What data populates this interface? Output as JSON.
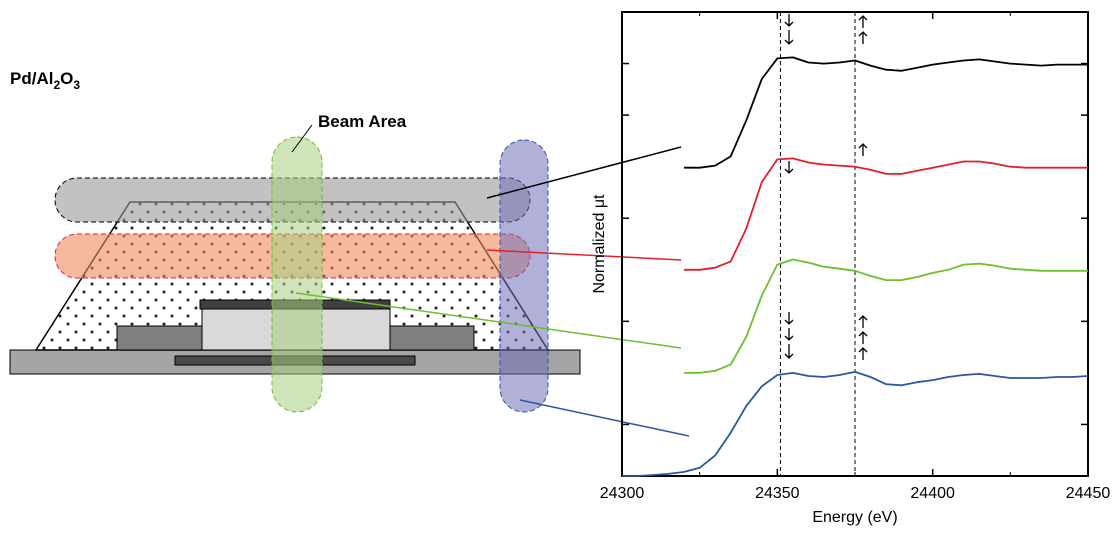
{
  "diagram": {
    "sample_label_parts": [
      "Pd/Al",
      "2",
      "O",
      "3"
    ],
    "beam_label": "Beam Area"
  },
  "chart_data": {
    "type": "line",
    "x_label": "Energy (eV)",
    "y_label": "Normalized μt",
    "x": [
      24300,
      24305,
      24310,
      24315,
      24320,
      24325,
      24330,
      24335,
      24340,
      24345,
      24350,
      24355,
      24360,
      24365,
      24370,
      24375,
      24380,
      24385,
      24390,
      24395,
      24400,
      24405,
      24410,
      24415,
      24420,
      24425,
      24430,
      24435,
      24440,
      24445,
      24450
    ],
    "series": [
      {
        "color": "#000000",
        "values": [
          null,
          null,
          null,
          null,
          2.99,
          2.99,
          3.01,
          3.1,
          3.45,
          3.85,
          4.05,
          4.06,
          4.01,
          4.0,
          4.01,
          4.03,
          3.98,
          3.94,
          3.93,
          3.96,
          3.99,
          4.01,
          4.03,
          4.04,
          4.02,
          4.0,
          3.99,
          3.98,
          3.99,
          3.99,
          3.99
        ]
      },
      {
        "color": "#e0202a",
        "values": [
          null,
          null,
          null,
          null,
          2.0,
          2.0,
          2.02,
          2.08,
          2.4,
          2.85,
          3.07,
          3.08,
          3.04,
          3.02,
          3.01,
          3.0,
          2.97,
          2.93,
          2.93,
          2.96,
          2.99,
          3.02,
          3.05,
          3.05,
          3.03,
          3.0,
          2.99,
          2.99,
          2.99,
          2.99,
          2.99
        ]
      },
      {
        "color": "#6cbf2e",
        "values": [
          null,
          null,
          null,
          null,
          1.0,
          1.0,
          1.02,
          1.08,
          1.35,
          1.75,
          2.05,
          2.1,
          2.07,
          2.03,
          2.01,
          1.99,
          1.94,
          1.9,
          1.9,
          1.93,
          1.97,
          2.0,
          2.05,
          2.06,
          2.04,
          2.01,
          2.0,
          1.99,
          1.99,
          1.99,
          1.99
        ]
      },
      {
        "color": "#2a57a0",
        "values": [
          0,
          0,
          0.01,
          0.02,
          0.04,
          0.08,
          0.2,
          0.42,
          0.68,
          0.87,
          0.98,
          1.0,
          0.97,
          0.96,
          0.98,
          1.01,
          0.96,
          0.89,
          0.88,
          0.91,
          0.93,
          0.96,
          0.98,
          0.99,
          0.97,
          0.95,
          0.95,
          0.95,
          0.96,
          0.96,
          0.97
        ]
      }
    ],
    "xlim": [
      24300,
      24450
    ],
    "xticks": [
      24300,
      24350,
      24400,
      24450
    ],
    "xminor": [
      24325,
      24375,
      24425
    ],
    "ylim": [
      0,
      4.5
    ],
    "yticks": [
      0.5,
      1.5,
      2.5,
      3.5,
      4
    ],
    "vlines": [
      24351,
      24375
    ]
  }
}
